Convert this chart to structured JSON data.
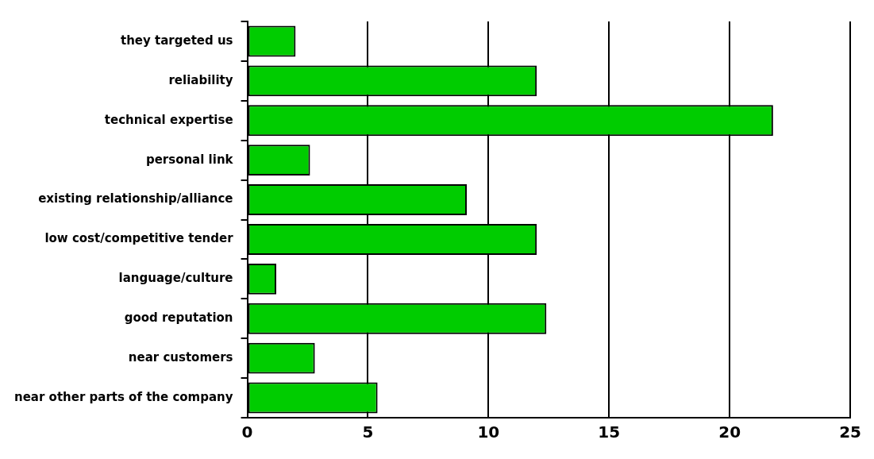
{
  "chart_data": {
    "type": "bar",
    "orientation": "horizontal",
    "categories": [
      "they targeted us",
      "reliability",
      "technical expertise",
      "personal link",
      "existing relationship/alliance",
      "low cost/competitive tender",
      "language/culture",
      "good reputation",
      "near customers",
      "near other parts of the company"
    ],
    "values": [
      2.0,
      12.0,
      21.8,
      2.6,
      9.1,
      12.0,
      1.2,
      12.4,
      2.8,
      5.4
    ],
    "color": "#00cc00",
    "xlim": [
      0,
      25
    ],
    "xticks": [
      0,
      5,
      10,
      15,
      20,
      25
    ],
    "grid": "x",
    "legend": false
  }
}
